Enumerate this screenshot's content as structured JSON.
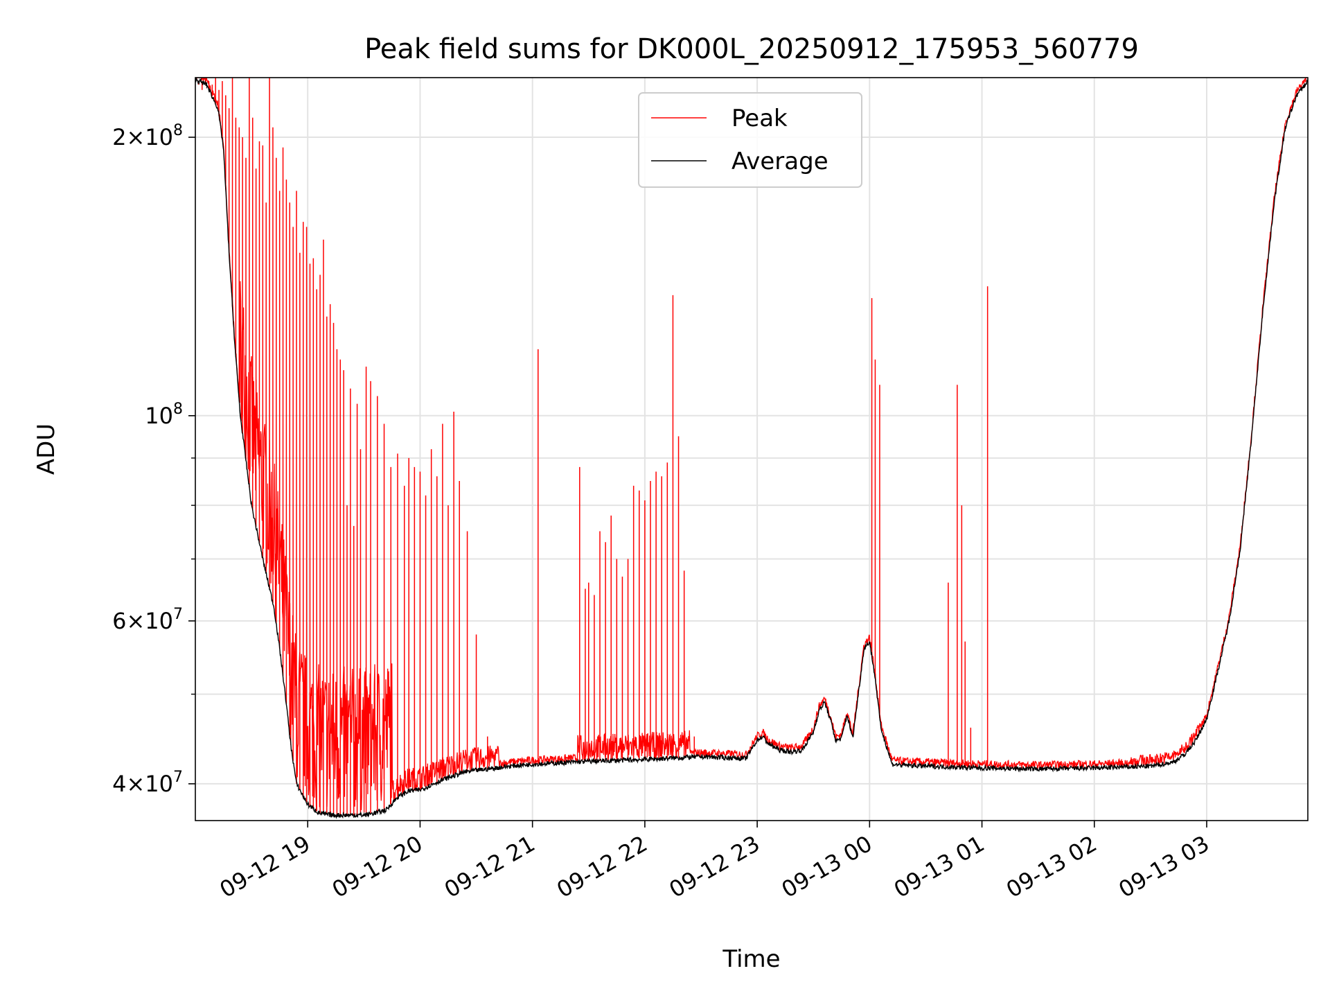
{
  "chart_data": {
    "type": "line",
    "title": "Peak field sums for DK000L_20250912_175953_560779",
    "xlabel": "Time",
    "ylabel": "ADU",
    "yscale": "log",
    "ylim": [
      36500000,
      232000000
    ],
    "xlim_hours": [
      18.0,
      27.9
    ],
    "grid": true,
    "legend_position": "top-center",
    "x_ticks": [
      {
        "label": "09-12 19",
        "hour": 19
      },
      {
        "label": "09-12 20",
        "hour": 20
      },
      {
        "label": "09-12 21",
        "hour": 21
      },
      {
        "label": "09-12 22",
        "hour": 22
      },
      {
        "label": "09-12 23",
        "hour": 23
      },
      {
        "label": "09-13 00",
        "hour": 24
      },
      {
        "label": "09-13 01",
        "hour": 25
      },
      {
        "label": "09-13 02",
        "hour": 26
      },
      {
        "label": "09-13 03",
        "hour": 27
      }
    ],
    "y_ticks": [
      {
        "mantissa": "4",
        "exp": "7",
        "value": 40000000
      },
      {
        "mantissa": "6",
        "exp": "7",
        "value": 60000000
      },
      {
        "mantissa": "",
        "exp": "8",
        "value": 100000000
      },
      {
        "mantissa": "2",
        "exp": "8",
        "value": 200000000
      }
    ],
    "y_minor_ticks": [
      50000000,
      70000000,
      80000000,
      90000000
    ],
    "series": [
      {
        "name": "Average",
        "color": "#000000",
        "hours": [
          18.0,
          18.1,
          18.2,
          18.25,
          18.3,
          18.35,
          18.4,
          18.5,
          18.6,
          18.7,
          18.75,
          18.8,
          18.85,
          18.9,
          19.0,
          19.1,
          19.2,
          19.3,
          19.4,
          19.5,
          19.6,
          19.7,
          19.8,
          19.9,
          20.0,
          20.2,
          20.4,
          20.6,
          20.8,
          21.0,
          21.5,
          22.0,
          22.5,
          22.7,
          22.9,
          23.0,
          23.05,
          23.1,
          23.2,
          23.3,
          23.4,
          23.5,
          23.55,
          23.6,
          23.65,
          23.7,
          23.75,
          23.8,
          23.85,
          23.9,
          23.95,
          24.0,
          24.05,
          24.1,
          24.2,
          24.3,
          24.5,
          25.0,
          25.5,
          26.0,
          26.5,
          26.7,
          26.8,
          26.9,
          27.0,
          27.1,
          27.2,
          27.3,
          27.4,
          27.5,
          27.6,
          27.7,
          27.8,
          27.9
        ],
        "values": [
          231000000,
          228000000,
          215000000,
          195000000,
          150000000,
          120000000,
          100000000,
          80000000,
          70000000,
          62000000,
          56000000,
          50000000,
          44000000,
          40000000,
          38000000,
          37200000,
          37000000,
          37000000,
          37000000,
          37000000,
          37200000,
          37500000,
          38700000,
          39300000,
          39400000,
          40400000,
          41200000,
          41500000,
          41800000,
          42000000,
          42300000,
          42500000,
          42800000,
          42700000,
          42600000,
          44600000,
          45000000,
          44200000,
          43500000,
          43300000,
          43500000,
          45500000,
          48000000,
          49000000,
          47000000,
          44500000,
          44800000,
          47500000,
          44800000,
          50000000,
          56000000,
          57000000,
          52000000,
          46000000,
          42000000,
          41900000,
          41800000,
          41600000,
          41500000,
          41600000,
          41800000,
          42200000,
          43000000,
          44500000,
          47000000,
          53000000,
          60000000,
          72000000,
          95000000,
          130000000,
          170000000,
          205000000,
          222000000,
          230000000
        ]
      },
      {
        "name": "Peak",
        "color": "#ff0000",
        "spike_hours": [
          18.03,
          18.06,
          18.09,
          18.12,
          18.15,
          18.18,
          18.21,
          18.24,
          18.27,
          18.3,
          18.33,
          18.36,
          18.39,
          18.42,
          18.45,
          18.48,
          18.51,
          18.54,
          18.57,
          18.6,
          18.63,
          18.66,
          18.69,
          18.72,
          18.75,
          18.78,
          18.81,
          18.84,
          18.87,
          18.9,
          18.93,
          18.96,
          18.99,
          19.02,
          19.05,
          19.08,
          19.11,
          19.14,
          19.17,
          19.2,
          19.23,
          19.26,
          19.29,
          19.32,
          19.35,
          19.38,
          19.41,
          19.44,
          19.47,
          19.52,
          19.56,
          19.62,
          19.68,
          19.74,
          19.8,
          19.86,
          19.9,
          19.95,
          20.0,
          20.05,
          20.1,
          20.15,
          20.2,
          20.25,
          20.3,
          20.35,
          20.42,
          20.5,
          20.6,
          21.05,
          21.42,
          21.47,
          21.5,
          21.55,
          21.6,
          21.65,
          21.7,
          21.75,
          21.8,
          21.85,
          21.9,
          21.95,
          22.0,
          22.05,
          22.1,
          22.15,
          22.2,
          22.25,
          22.3,
          22.35,
          22.44,
          24.02,
          24.05,
          24.09,
          24.7,
          24.78,
          24.82,
          24.85,
          24.9,
          25.05
        ],
        "spike_values": [
          228000000,
          225000000,
          232000000,
          230000000,
          228000000,
          232000000,
          225000000,
          230000000,
          222000000,
          215000000,
          232000000,
          210000000,
          205000000,
          200000000,
          190000000,
          232000000,
          210000000,
          185000000,
          198000000,
          196000000,
          170000000,
          232000000,
          205000000,
          190000000,
          175000000,
          195000000,
          180000000,
          170000000,
          160000000,
          175000000,
          150000000,
          162000000,
          160000000,
          146000000,
          148000000,
          137000000,
          142000000,
          155000000,
          128000000,
          132000000,
          126000000,
          118000000,
          115000000,
          112000000,
          80000000,
          107000000,
          76000000,
          103000000,
          92000000,
          113000000,
          109000000,
          105000000,
          98000000,
          88000000,
          91000000,
          84000000,
          90000000,
          88000000,
          87000000,
          82000000,
          92000000,
          86000000,
          98000000,
          80000000,
          101000000,
          85000000,
          75000000,
          58000000,
          45000000,
          118000000,
          88000000,
          65000000,
          66000000,
          64000000,
          75000000,
          73000000,
          78000000,
          70000000,
          67000000,
          70000000,
          84000000,
          83000000,
          81000000,
          85000000,
          87000000,
          86000000,
          89000000,
          135000000,
          95000000,
          68000000,
          45000000,
          134000000,
          115000000,
          108000000,
          66000000,
          108000000,
          80000000,
          57000000,
          46000000,
          138000000
        ]
      }
    ]
  }
}
